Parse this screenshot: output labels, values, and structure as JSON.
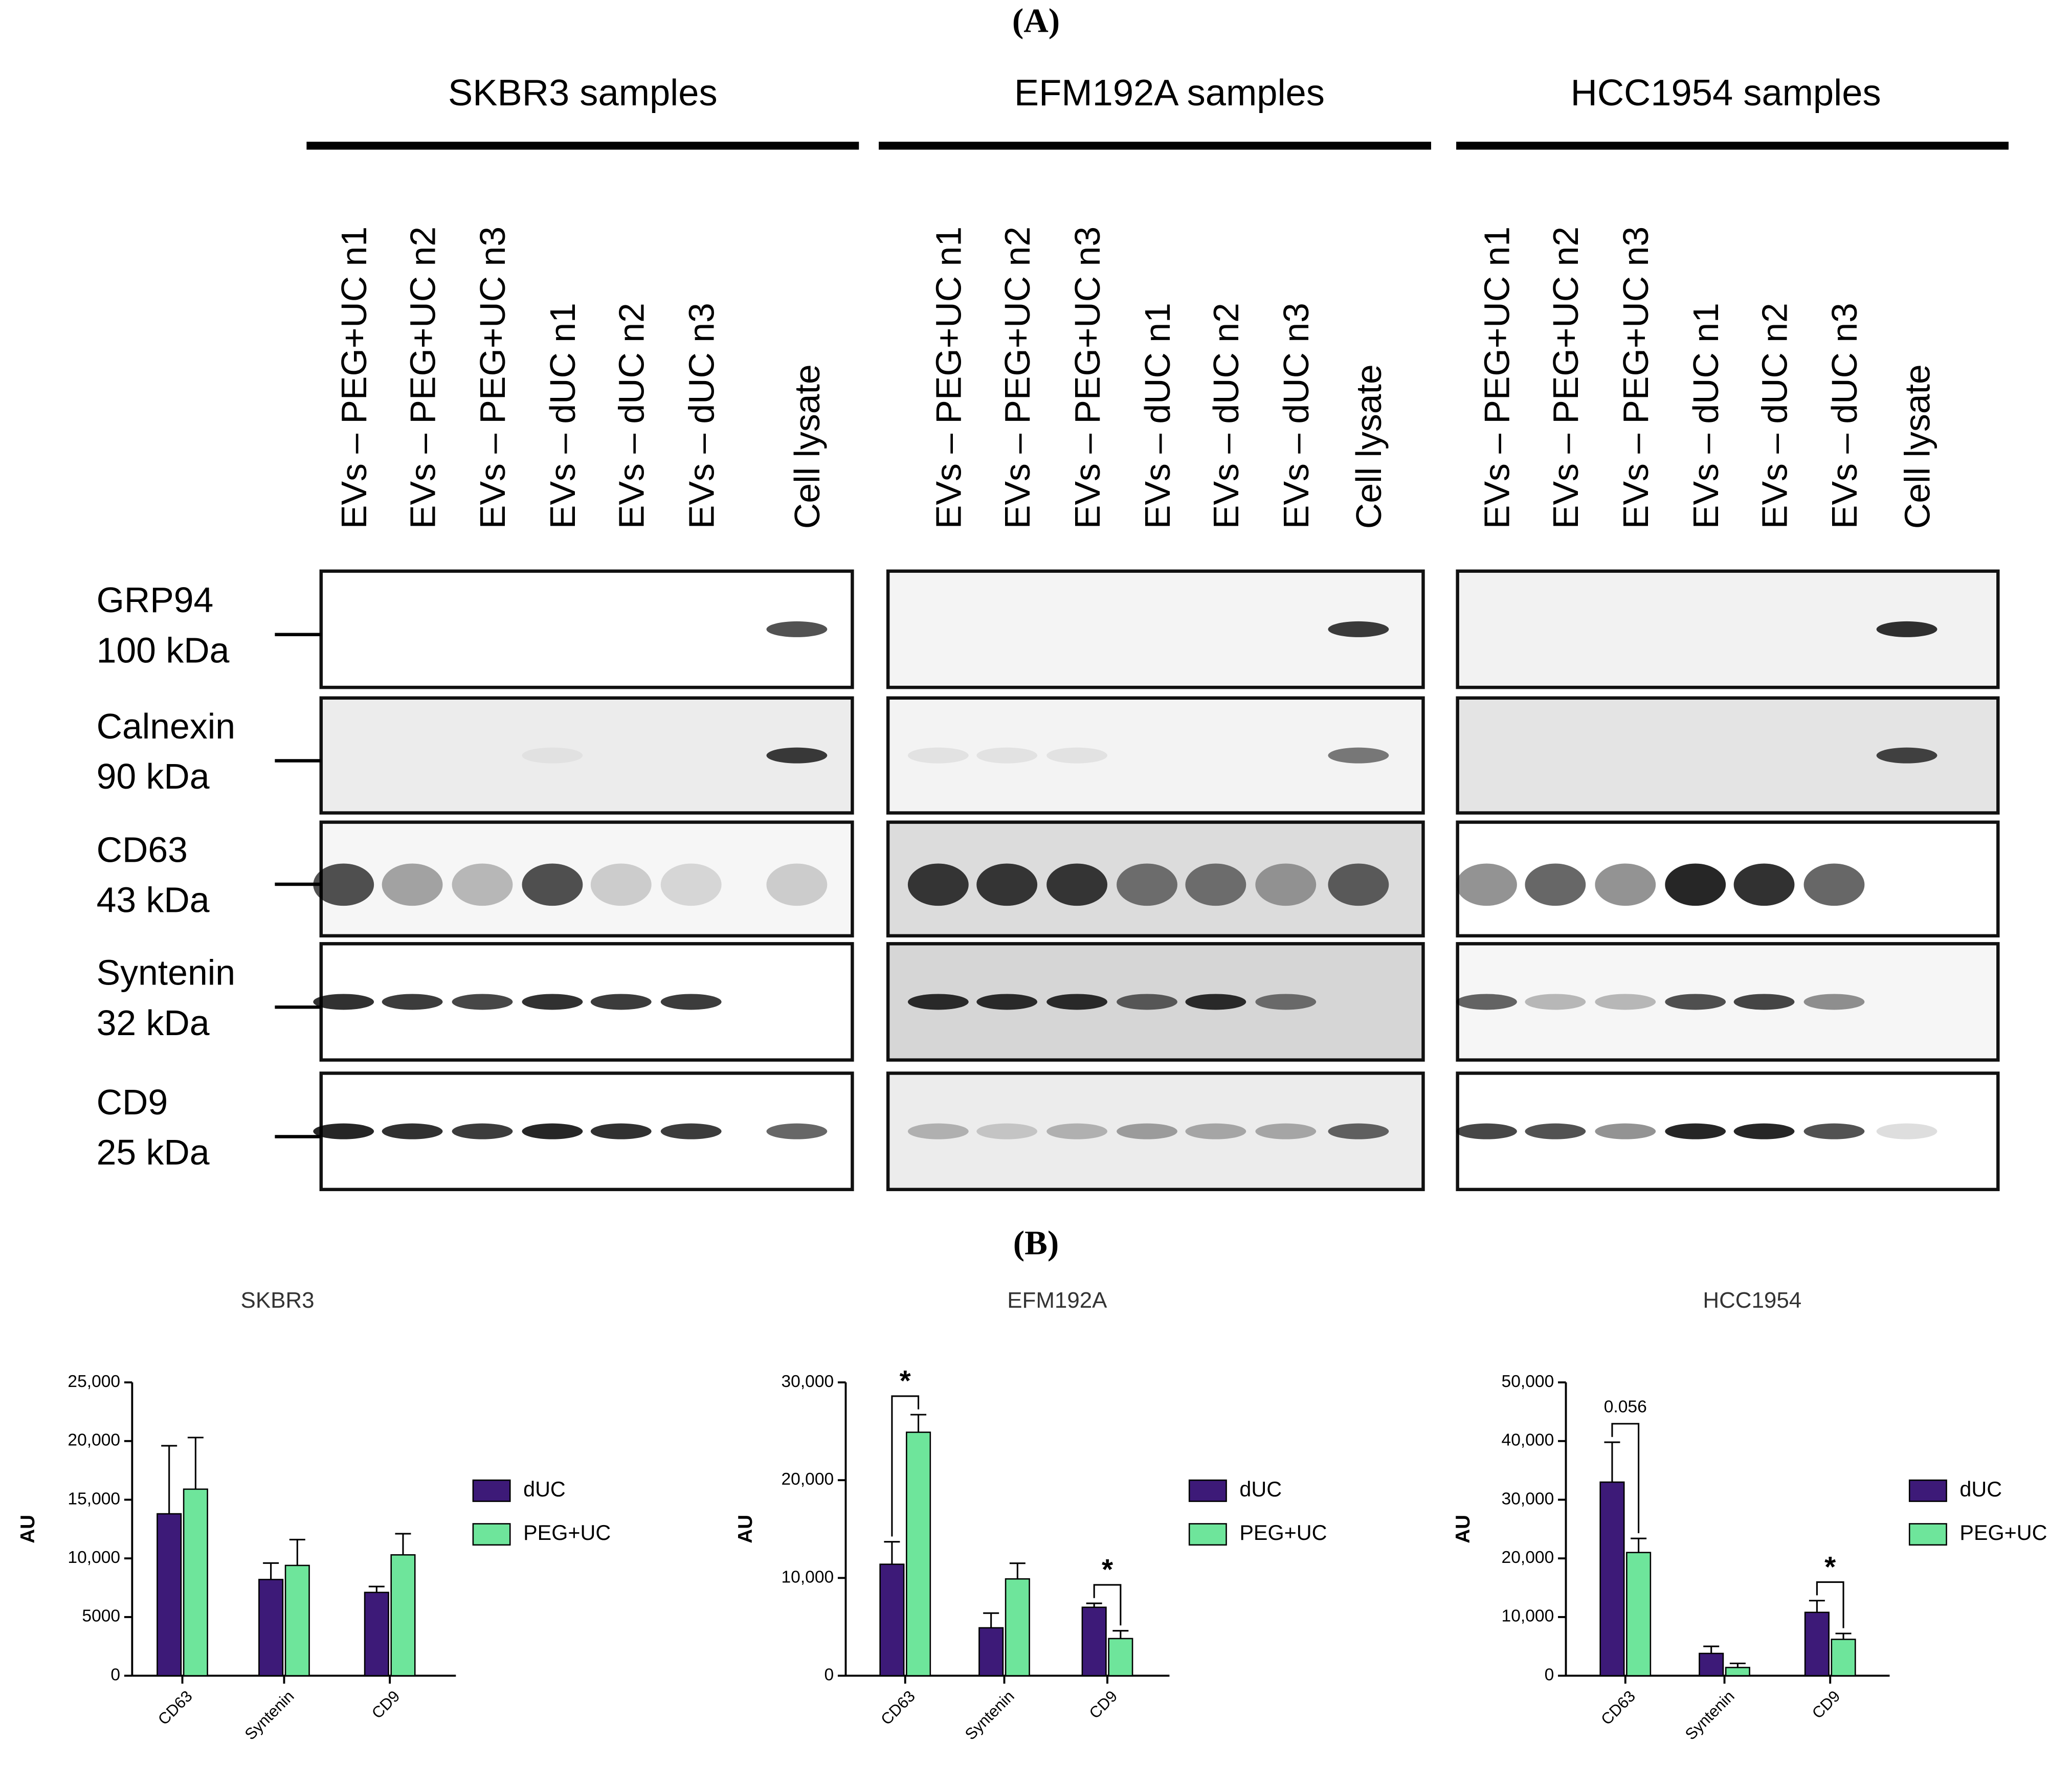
{
  "panel_a": {
    "label": "(A)",
    "groups": [
      {
        "title": "SKBR3 samples",
        "lanes": [
          "EVs – PEG+UC n1",
          "EVs – PEG+UC n2",
          "EVs – PEG+UC n3",
          "EVs – dUC n1",
          "EVs – dUC n2",
          "EVs – dUC n3",
          "Cell lysate"
        ]
      },
      {
        "title": "EFM192A samples",
        "lanes": [
          "EVs – PEG+UC n1",
          "EVs – PEG+UC n2",
          "EVs – PEG+UC n3",
          "EVs – dUC n1",
          "EVs – dUC n2",
          "EVs – dUC n3",
          "Cell lysate"
        ]
      },
      {
        "title": "HCC1954 samples",
        "lanes": [
          "EVs – PEG+UC n1",
          "EVs – PEG+UC n2",
          "EVs – PEG+UC n3",
          "EVs – dUC n1",
          "EVs – dUC n2",
          "EVs – dUC n3",
          "Cell lysate"
        ]
      }
    ],
    "rows": [
      {
        "protein": "GRP94",
        "size": "100 kDa"
      },
      {
        "protein": "Calnexin",
        "size": "90 kDa"
      },
      {
        "protein": "CD63",
        "size": "43 kDa"
      },
      {
        "protein": "Syntenin",
        "size": "32 kDa"
      },
      {
        "protein": "CD9",
        "size": "25 kDa"
      }
    ]
  },
  "panel_b": {
    "label": "(B)"
  },
  "chart_data": [
    {
      "type": "bar",
      "title": "SKBR3",
      "ylabel": "AU",
      "categories": [
        "CD63",
        "Syntenin",
        "CD9"
      ],
      "series": [
        {
          "name": "dUC",
          "color": "#3d1a78",
          "values": [
            13800,
            8200,
            7100
          ],
          "errors": [
            5800,
            1400,
            500
          ]
        },
        {
          "name": "PEG+UC",
          "color": "#6ee59b",
          "values": [
            15900,
            9400,
            10300
          ],
          "errors": [
            4400,
            2200,
            1800
          ]
        }
      ],
      "ylim": [
        0,
        25000
      ],
      "yticks": [
        0,
        5000,
        {
          "value": 10000,
          "label": "10,000"
        },
        {
          "value": 15000,
          "label": "15,000"
        },
        {
          "value": 20000,
          "label": "20,000"
        },
        {
          "value": 25000,
          "label": "25,000"
        }
      ],
      "annotations": []
    },
    {
      "type": "bar",
      "title": "EFM192A",
      "ylabel": "AU",
      "categories": [
        "CD63",
        "Syntenin",
        "CD9"
      ],
      "series": [
        {
          "name": "dUC",
          "color": "#3d1a78",
          "values": [
            11400,
            4900,
            7000
          ],
          "errors": [
            2300,
            1500,
            400
          ]
        },
        {
          "name": "PEG+UC",
          "color": "#6ee59b",
          "values": [
            24900,
            9900,
            3800
          ],
          "errors": [
            1800,
            1600,
            800
          ]
        }
      ],
      "ylim": [
        0,
        30000
      ],
      "yticks": [
        0,
        {
          "value": 10000,
          "label": "10,000"
        },
        {
          "value": 20000,
          "label": "20,000"
        },
        {
          "value": 30000,
          "label": "30,000"
        }
      ],
      "annotations": [
        "*",
        "*"
      ]
    },
    {
      "type": "bar",
      "title": "HCC1954",
      "ylabel": "AU",
      "categories": [
        "CD63",
        "Syntenin",
        "CD9"
      ],
      "series": [
        {
          "name": "dUC",
          "color": "#3d1a78",
          "values": [
            33000,
            3800,
            10800
          ],
          "errors": [
            6800,
            1200,
            2000
          ]
        },
        {
          "name": "PEG+UC",
          "color": "#6ee59b",
          "values": [
            21000,
            1400,
            6200
          ],
          "errors": [
            2400,
            700,
            1000
          ]
        }
      ],
      "ylim": [
        0,
        50000
      ],
      "yticks": [
        0,
        {
          "value": 10000,
          "label": "10,000"
        },
        {
          "value": 20000,
          "label": "20,000"
        },
        {
          "value": 30000,
          "label": "30,000"
        },
        {
          "value": 40000,
          "label": "40,000"
        },
        {
          "value": 50000,
          "label": "50,000"
        }
      ],
      "annotations": [
        "0.056",
        "*"
      ]
    }
  ]
}
